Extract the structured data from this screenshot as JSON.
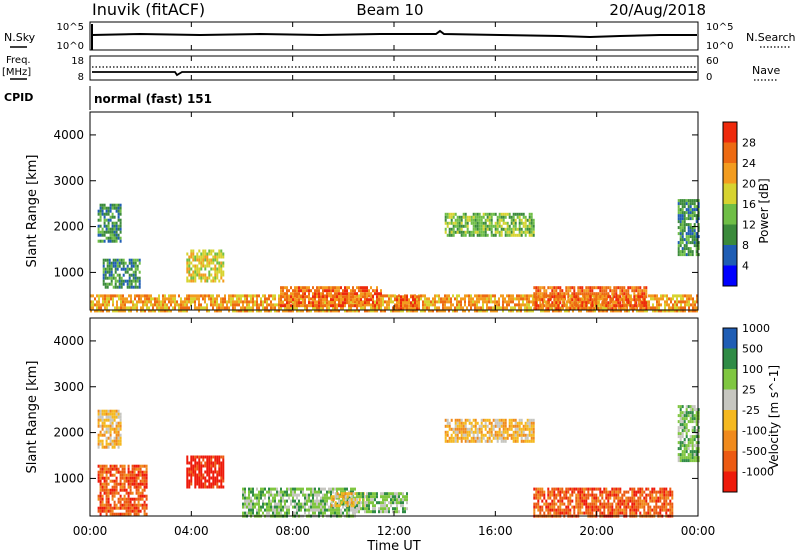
{
  "header": {
    "title_left": "Inuvik (fitACF)",
    "title_center": "Beam 10",
    "title_right": "20/Aug/2018"
  },
  "nsky": {
    "label": "N.Sky",
    "left_ticks": [
      "10^5",
      "10^0"
    ],
    "right_ticks": [
      "10^5",
      "10^0"
    ],
    "right_label": "N.Search"
  },
  "freq": {
    "label_line1": "Freq.",
    "label_line2": "[MHz]",
    "left_ticks": [
      "18",
      "8"
    ],
    "right_ticks": [
      "60",
      "0"
    ],
    "right_label": "Nave"
  },
  "cpid": {
    "label": "CPID",
    "value": "normal (fast) 151"
  },
  "x_axis": {
    "label": "Time UT",
    "ticks": [
      "00:00",
      "04:00",
      "08:00",
      "12:00",
      "16:00",
      "20:00",
      "00:00"
    ]
  },
  "colors": {
    "power": [
      "#0000ff",
      "#1f5db4",
      "#3b8a3b",
      "#6fbe46",
      "#d7d330",
      "#f39c1f",
      "#ed6a12",
      "#ee2a0c"
    ],
    "velocity": [
      "#ee1a0a",
      "#ec5a12",
      "#f08a1c",
      "#f5b81f",
      "#c6c6c0",
      "#7fc640",
      "#2f8b45",
      "#1f5db4"
    ]
  },
  "chart_data": [
    {
      "type": "heatmap",
      "panel": "power",
      "ylabel": "Slant Range [km]",
      "yticks": [
        "1000",
        "2000",
        "3000",
        "4000"
      ],
      "ylim": [
        180,
        4500
      ],
      "xlim": [
        0,
        24
      ],
      "colorbar": {
        "label": "Power [dB]",
        "ticks": [
          "4",
          "8",
          "12",
          "16",
          "20",
          "24",
          "28"
        ],
        "range": [
          0,
          32
        ]
      },
      "echo_regions": [
        {
          "t": [
            0.0,
            24.0
          ],
          "r": [
            180,
            520
          ],
          "value": 22
        },
        {
          "t": [
            0.3,
            1.2
          ],
          "r": [
            1700,
            2500
          ],
          "value": 10
        },
        {
          "t": [
            0.5,
            2.0
          ],
          "r": [
            700,
            1300
          ],
          "value": 9
        },
        {
          "t": [
            3.8,
            5.3
          ],
          "r": [
            800,
            1500
          ],
          "value": 18
        },
        {
          "t": [
            7.5,
            11.5
          ],
          "r": [
            250,
            700
          ],
          "value": 24
        },
        {
          "t": [
            12.0,
            13.0
          ],
          "r": [
            200,
            500
          ],
          "value": 26
        },
        {
          "t": [
            14.0,
            17.5
          ],
          "r": [
            1800,
            2300
          ],
          "value": 12
        },
        {
          "t": [
            17.5,
            22.0
          ],
          "r": [
            200,
            700
          ],
          "value": 24
        },
        {
          "t": [
            23.2,
            24.0
          ],
          "r": [
            1400,
            2600
          ],
          "value": 8
        }
      ]
    },
    {
      "type": "heatmap",
      "panel": "velocity",
      "ylabel": "Slant Range [km]",
      "yticks": [
        "1000",
        "2000",
        "3000",
        "4000"
      ],
      "ylim": [
        180,
        4500
      ],
      "xlim": [
        0,
        24
      ],
      "colorbar": {
        "label": "Velocity [m s^-1]",
        "ticks": [
          "-1000",
          "-500",
          "-100",
          "-25",
          "25",
          "100",
          "500",
          "1000"
        ]
      },
      "echo_regions": [
        {
          "t": [
            0.3,
            1.2
          ],
          "r": [
            1700,
            2500
          ],
          "value": 0
        },
        {
          "t": [
            0.3,
            2.2
          ],
          "r": [
            200,
            1300
          ],
          "value": -300
        },
        {
          "t": [
            3.8,
            5.3
          ],
          "r": [
            800,
            1500
          ],
          "value": -600
        },
        {
          "t": [
            6.0,
            10.5
          ],
          "r": [
            200,
            800
          ],
          "value": 300
        },
        {
          "t": [
            9.5,
            11.0
          ],
          "r": [
            400,
            700
          ],
          "value": 0
        },
        {
          "t": [
            10.5,
            12.5
          ],
          "r": [
            250,
            700
          ],
          "value": 150
        },
        {
          "t": [
            14.0,
            17.5
          ],
          "r": [
            1800,
            2300
          ],
          "value": 0
        },
        {
          "t": [
            17.5,
            23.0
          ],
          "r": [
            200,
            800
          ],
          "value": -300
        },
        {
          "t": [
            23.2,
            24.0
          ],
          "r": [
            1400,
            2600
          ],
          "value": 100
        }
      ]
    }
  ]
}
